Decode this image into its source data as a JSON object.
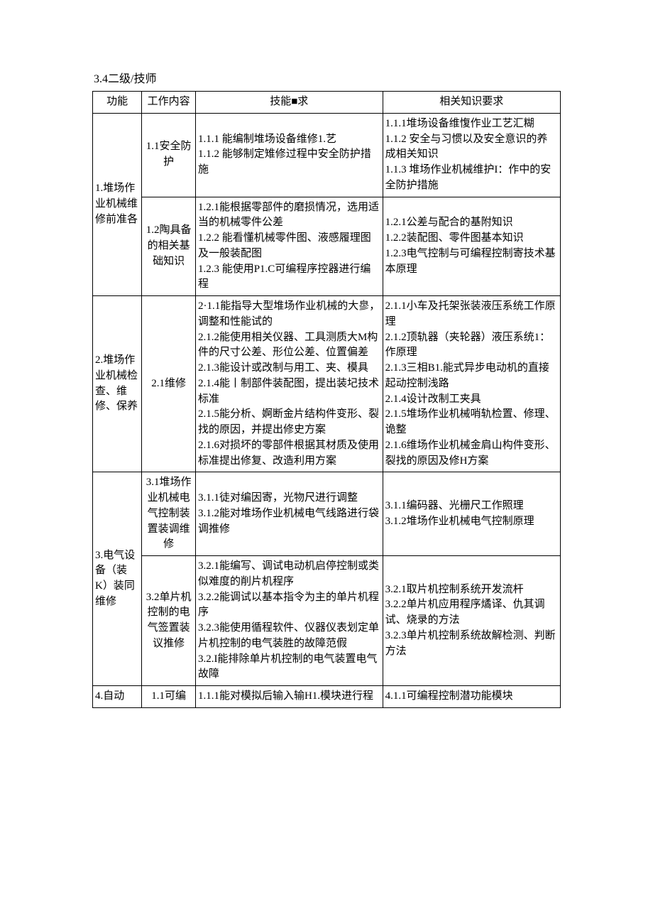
{
  "title": "3.4二级/技师",
  "headers": [
    "功能",
    "工作内容",
    "技能■求",
    "相关知识要求"
  ],
  "rows": [
    {
      "func": "1.堆场作业机械维修前准各",
      "funcRowspan": 2,
      "content": "1.1安全防护",
      "skill": "1.1.1    能编制堆场设备维修1.艺\n1.1.2    能够制定雉修过程中安全防护措施",
      "knowledge": "1.1.1堆场设备维愎作业工艺汇糊\n1.1.2    安全与习惯以及安全意识的养成相关知识\n1.1.3    堆场作业机械维护I：作中的安全防护措施"
    },
    {
      "content": "1.2陶具备的相关基础知识",
      "skill": "1.2.1能根据零部件的磨损情况，选用适当的机械零件公差\n1.2.2    能看懂机械零件图、液感履理图及一般装配图\n1.2.3    能使用P1.C可编程序控器进行编程",
      "knowledge": "1.2.1公差与配合的基附知识\n1.2.2装配图、零件图基本知识\n1.2.3电气控制与可编程控制寄技术基本原理"
    },
    {
      "func": "2.堆场作业机械检查、维修、保养",
      "funcRowspan": 1,
      "content": "2.1维修",
      "skill": "2·1.1能指导大型堆场作业机械的大㣎，调整和性能试的\n2.1.2能使用相关仪器、工具测质大M构件的尺寸公差、形位公差、位置偏差\n2.1.3能设计或改制与用工、夹、模具\n2.1.4能丨制部件装配图，提出装圮技术标准\n2.1.5能分析、婀断金片结构件变形、裂找的原因，并提出修史方案\n2.1.6对损坏的零部件根据其材质及使用标准提出修复、改造利用方案",
      "knowledge": "2.1.1小车及托架张装液压系统工作原理\n2.1.2顶轨器（夹轮器）液压系统1：作原理\n2.1.3三相B1.能式异步电动机的直接起动控制浅路\n2.1.4设计改制工夹具\n2.1.5堆场作业机械哨轨检置、修理、诡整\n2.1.6维场作业机械金肩山构件变形、裂找的原因及修H方案"
    },
    {
      "func": "3.电气设备（装K）装同维修",
      "funcRowspan": 2,
      "content": "3.1堆场作业机械电气控制装置装调维修",
      "skill": "3.1.1徒对编因寄，光物尺进行调整\n3.1.2能对堆场作业机械电气线路进行袋调推修",
      "knowledge": "3.1.1编码器、光栅尺工作照理\n3.1.2堆场作业机械电气控制原理"
    },
    {
      "content": "3.2单片机控制的电气签置装议推修",
      "skill": "3.2.1能编写、调试电动机启停控制或类似难度的削片机程序\n3.2.2能调试以基本指令为主的单片机程序\n3.2.3能使用循程软件、仪器仪表划定单片机控制的电气装胜的故障范假\n3.2.I能排除单片机控制的电气装置电气故障",
      "knowledge": "3.2.1取片机控制系统开发流杆\n3.2.2单片机应用程序燏译、仇其调试、烧录的方法\n3.2.3单片机控制系统故解检测、判断方法"
    },
    {
      "func": "4.自动",
      "funcRowspan": 1,
      "content": "1.1可编",
      "skill": "1.1.1能对模拟后输入输H1.模块进行程",
      "knowledge": "4.1.1可编程控制潜功能模块"
    }
  ]
}
